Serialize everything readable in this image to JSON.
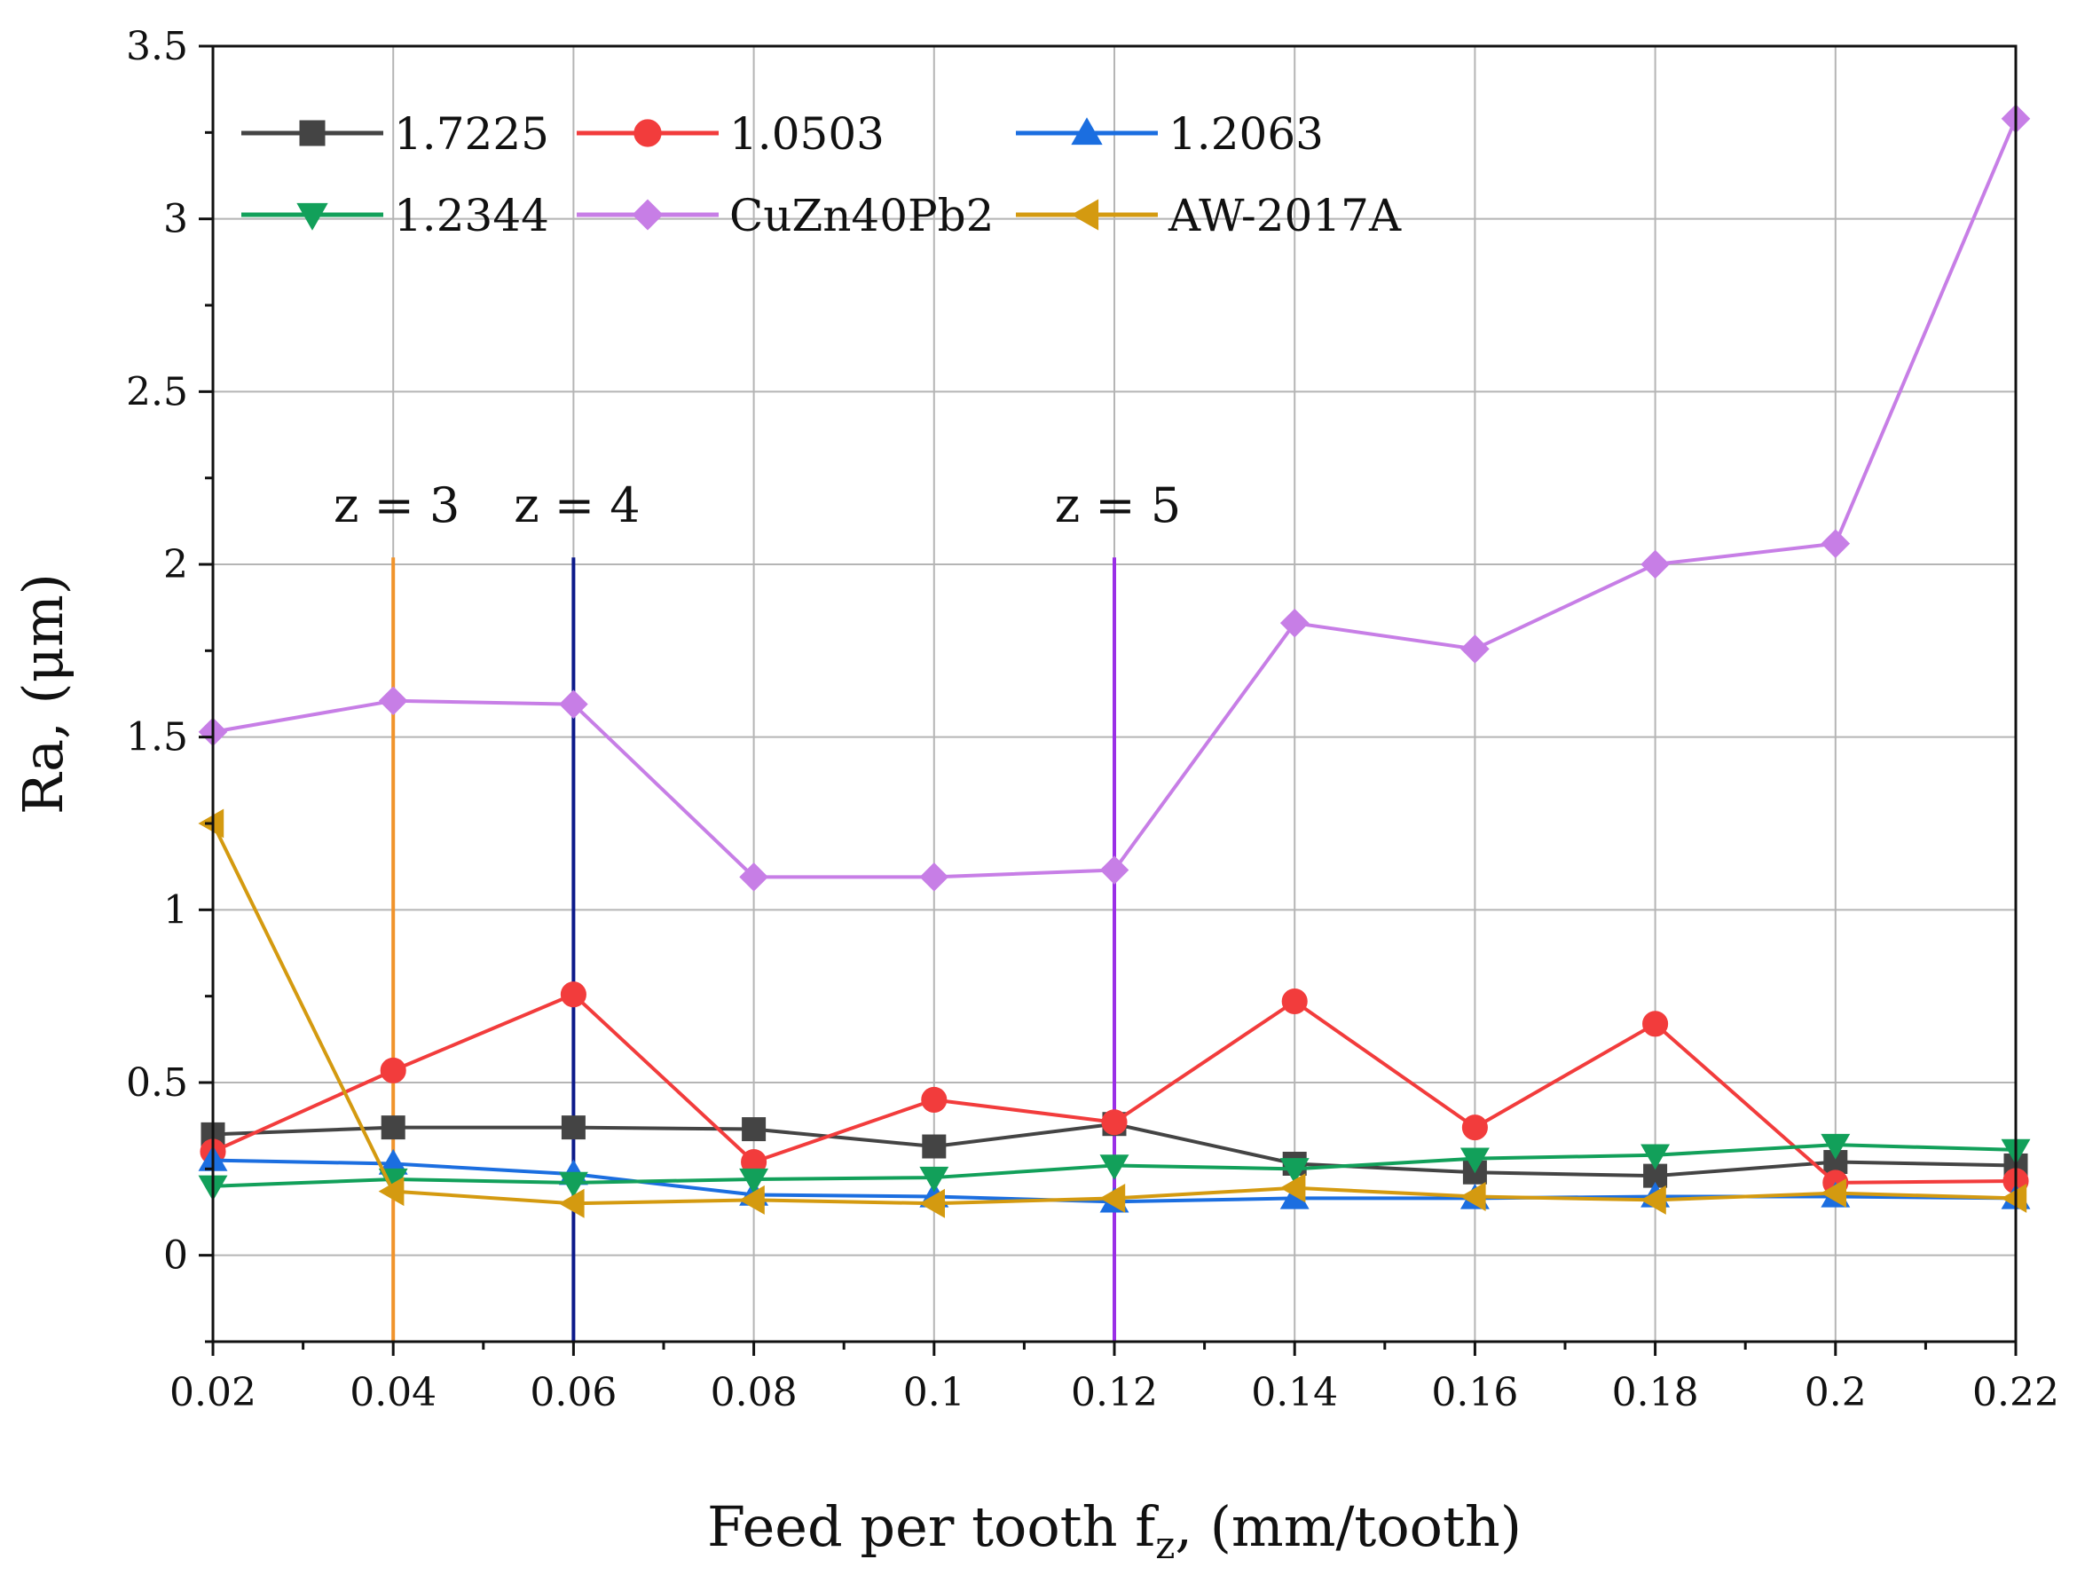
{
  "chart_data": {
    "type": "line",
    "title": "",
    "xlabel": "Feed per tooth f",
    "xlabel_sub": "z",
    "xlabel_suffix": ", (mm/tooth)",
    "ylabel": "Ra, (μm)",
    "xlim": [
      0.02,
      0.22
    ],
    "ylim": [
      -0.25,
      3.5
    ],
    "grid": true,
    "legend_position": "top-left",
    "x": [
      0.02,
      0.04,
      0.06,
      0.08,
      0.1,
      0.12,
      0.14,
      0.16,
      0.18,
      0.2,
      0.22
    ],
    "x_tick_labels": [
      "0.02",
      "0.04",
      "0.06",
      "0.08",
      "0.1",
      "0.12",
      "0.14",
      "0.16",
      "0.18",
      "0.2",
      "0.22"
    ],
    "y_ticks": [
      0,
      0.5,
      1,
      1.5,
      2,
      2.5,
      3,
      3.5
    ],
    "y_tick_labels": [
      "0",
      "0.5",
      "1",
      "1.5",
      "2",
      "2.5",
      "3",
      "3.5"
    ],
    "series": [
      {
        "name": "1.7225",
        "color": "#444444",
        "marker": "square",
        "values": [
          0.35,
          0.37,
          0.37,
          0.365,
          0.315,
          0.38,
          0.265,
          0.24,
          0.23,
          0.27,
          0.26
        ]
      },
      {
        "name": "1.0503",
        "color": "#f23c3c",
        "marker": "circle",
        "values": [
          0.3,
          0.535,
          0.755,
          0.27,
          0.45,
          0.385,
          0.735,
          0.37,
          0.67,
          0.21,
          0.215
        ]
      },
      {
        "name": "1.2063",
        "color": "#1b6ee0",
        "marker": "triangle-up",
        "values": [
          0.275,
          0.265,
          0.235,
          0.175,
          0.17,
          0.155,
          0.165,
          0.165,
          0.17,
          0.17,
          0.165
        ]
      },
      {
        "name": "1.2344",
        "color": "#12a05a",
        "marker": "triangle-down",
        "values": [
          0.2,
          0.22,
          0.21,
          0.22,
          0.225,
          0.26,
          0.25,
          0.28,
          0.29,
          0.32,
          0.305
        ]
      },
      {
        "name": "CuZn40Pb2",
        "color": "#c77ee6",
        "marker": "diamond",
        "values": [
          1.515,
          1.605,
          1.595,
          1.095,
          1.095,
          1.115,
          1.83,
          1.755,
          2.0,
          2.06,
          3.29
        ]
      },
      {
        "name": "AW-2017A",
        "color": "#d49a10",
        "marker": "triangle-left",
        "values": [
          1.25,
          0.185,
          0.15,
          0.16,
          0.15,
          0.165,
          0.195,
          0.17,
          0.16,
          0.18,
          0.165
        ]
      }
    ],
    "annotations": [
      {
        "label": "z = 3",
        "x": 0.04,
        "color": "#f0932b"
      },
      {
        "label": "z = 4",
        "x": 0.06,
        "color": "#0c1a8a"
      },
      {
        "label": "z = 5",
        "x": 0.12,
        "color": "#9a2fe6"
      }
    ]
  }
}
